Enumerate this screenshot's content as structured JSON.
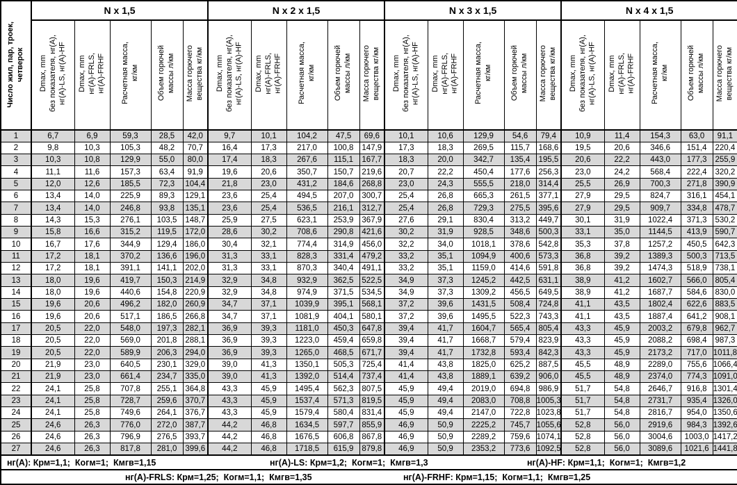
{
  "table": {
    "row_header": "Число жил, пар, троек,\nчетверок",
    "groups": [
      "N x 1,5",
      "N x 2 x 1,5",
      "N x 3 x 1,5",
      "N x 4 x 1,5"
    ],
    "subcolumns": [
      "Dmax, mm\nбез показателя, нг(A),\nнг(A)-LS, нг(A)-HF",
      "Dmax, mm\nнг(A)-FRLS,\nнг(A)-FRHF",
      "Расчетная масса,\nкг/км",
      "Объем горючей\nмассы л/км",
      "Масса горючего\nвещества кг/км"
    ],
    "rows": [
      [
        "1",
        "6,7",
        "6,9",
        "59,3",
        "28,5",
        "42,0",
        "9,7",
        "10,1",
        "104,2",
        "47,5",
        "69,6",
        "10,1",
        "10,6",
        "129,9",
        "54,6",
        "79,4",
        "10,9",
        "11,4",
        "154,3",
        "63,0",
        "91,1"
      ],
      [
        "2",
        "9,8",
        "10,3",
        "105,3",
        "48,2",
        "70,7",
        "16,4",
        "17,3",
        "217,0",
        "100,8",
        "147,9",
        "17,3",
        "18,3",
        "269,5",
        "115,7",
        "168,6",
        "19,5",
        "20,6",
        "346,6",
        "151,4",
        "220,4"
      ],
      [
        "3",
        "10,3",
        "10,8",
        "129,9",
        "55,0",
        "80,0",
        "17,4",
        "18,3",
        "267,6",
        "115,1",
        "167,7",
        "18,3",
        "20,0",
        "342,7",
        "135,4",
        "195,5",
        "20,6",
        "22,2",
        "443,0",
        "177,3",
        "255,9"
      ],
      [
        "4",
        "11,1",
        "11,6",
        "157,3",
        "63,4",
        "91,9",
        "19,6",
        "20,6",
        "350,7",
        "150,7",
        "219,6",
        "20,7",
        "22,2",
        "450,4",
        "177,6",
        "256,3",
        "23,0",
        "24,2",
        "568,4",
        "222,4",
        "320,2"
      ],
      [
        "5",
        "12,0",
        "12,6",
        "185,5",
        "72,3",
        "104,4",
        "21,8",
        "23,0",
        "431,2",
        "184,6",
        "268,8",
        "23,0",
        "24,3",
        "555,5",
        "218,0",
        "314,4",
        "25,5",
        "26,9",
        "700,3",
        "271,8",
        "390,9"
      ],
      [
        "6",
        "13,4",
        "14,0",
        "225,9",
        "89,3",
        "129,1",
        "23,6",
        "25,4",
        "494,5",
        "207,0",
        "300,7",
        "25,4",
        "26,8",
        "665,3",
        "261,5",
        "377,1",
        "27,9",
        "29,5",
        "824,7",
        "316,1",
        "454,1"
      ],
      [
        "7",
        "13,4",
        "14,0",
        "246,8",
        "93,8",
        "135,1",
        "23,6",
        "25,4",
        "536,5",
        "216,1",
        "312,7",
        "25,4",
        "26,8",
        "729,3",
        "275,5",
        "395,6",
        "27,9",
        "29,5",
        "909,7",
        "334,8",
        "478,7"
      ],
      [
        "8",
        "14,3",
        "15,3",
        "276,1",
        "103,5",
        "148,7",
        "25,9",
        "27,5",
        "623,1",
        "253,9",
        "367,9",
        "27,6",
        "29,1",
        "830,4",
        "313,2",
        "449,7",
        "30,1",
        "31,9",
        "1022,4",
        "371,3",
        "530,2"
      ],
      [
        "9",
        "15,8",
        "16,6",
        "315,2",
        "119,5",
        "172,0",
        "28,6",
        "30,2",
        "708,6",
        "290,8",
        "421,6",
        "30,2",
        "31,9",
        "928,5",
        "348,6",
        "500,3",
        "33,1",
        "35,0",
        "1144,5",
        "413,9",
        "590,7"
      ],
      [
        "10",
        "16,7",
        "17,6",
        "344,9",
        "129,4",
        "186,0",
        "30,4",
        "32,1",
        "774,4",
        "314,9",
        "456,0",
        "32,2",
        "34,0",
        "1018,1",
        "378,6",
        "542,8",
        "35,3",
        "37,8",
        "1257,2",
        "450,5",
        "642,3"
      ],
      [
        "11",
        "17,2",
        "18,1",
        "370,2",
        "136,6",
        "196,0",
        "31,3",
        "33,1",
        "828,3",
        "331,4",
        "479,2",
        "33,2",
        "35,1",
        "1094,9",
        "400,6",
        "573,3",
        "36,8",
        "39,2",
        "1389,3",
        "500,3",
        "713,5"
      ],
      [
        "12",
        "17,2",
        "18,1",
        "391,1",
        "141,1",
        "202,0",
        "31,3",
        "33,1",
        "870,3",
        "340,4",
        "491,1",
        "33,2",
        "35,1",
        "1159,0",
        "414,6",
        "591,8",
        "36,8",
        "39,2",
        "1474,3",
        "518,9",
        "738,1"
      ],
      [
        "13",
        "18,0",
        "19,6",
        "419,7",
        "150,3",
        "214,9",
        "32,9",
        "34,8",
        "932,9",
        "362,5",
        "522,5",
        "34,9",
        "37,3",
        "1245,2",
        "442,5",
        "631,1",
        "38,9",
        "41,2",
        "1602,7",
        "566,0",
        "805,4"
      ],
      [
        "14",
        "18,0",
        "19,6",
        "440,6",
        "154,8",
        "220,9",
        "32,9",
        "34,8",
        "974,9",
        "371,5",
        "534,5",
        "34,9",
        "37,3",
        "1309,2",
        "456,5",
        "649,5",
        "38,9",
        "41,2",
        "1687,7",
        "584,6",
        "830,0"
      ],
      [
        "15",
        "19,6",
        "20,6",
        "496,2",
        "182,0",
        "260,9",
        "34,7",
        "37,1",
        "1039,9",
        "395,1",
        "568,1",
        "37,2",
        "39,6",
        "1431,5",
        "508,4",
        "724,8",
        "41,1",
        "43,5",
        "1802,4",
        "622,6",
        "883,5"
      ],
      [
        "16",
        "19,6",
        "20,6",
        "517,1",
        "186,5",
        "266,8",
        "34,7",
        "37,1",
        "1081,9",
        "404,1",
        "580,1",
        "37,2",
        "39,6",
        "1495,5",
        "522,3",
        "743,3",
        "41,1",
        "43,5",
        "1887,4",
        "641,2",
        "908,1"
      ],
      [
        "17",
        "20,5",
        "22,0",
        "548,0",
        "197,3",
        "282,1",
        "36,9",
        "39,3",
        "1181,0",
        "450,3",
        "647,8",
        "39,4",
        "41,7",
        "1604,7",
        "565,4",
        "805,4",
        "43,3",
        "45,9",
        "2003,2",
        "679,8",
        "962,7"
      ],
      [
        "18",
        "20,5",
        "22,0",
        "569,0",
        "201,8",
        "288,1",
        "36,9",
        "39,3",
        "1223,0",
        "459,4",
        "659,8",
        "39,4",
        "41,7",
        "1668,7",
        "579,4",
        "823,9",
        "43,3",
        "45,9",
        "2088,2",
        "698,4",
        "987,3"
      ],
      [
        "19",
        "20,5",
        "22,0",
        "589,9",
        "206,3",
        "294,0",
        "36,9",
        "39,3",
        "1265,0",
        "468,5",
        "671,7",
        "39,4",
        "41,7",
        "1732,8",
        "593,4",
        "842,3",
        "43,3",
        "45,9",
        "2173,2",
        "717,0",
        "1011,8"
      ],
      [
        "20",
        "21,9",
        "23,0",
        "640,5",
        "230,1",
        "329,0",
        "39,0",
        "41,3",
        "1350,1",
        "505,3",
        "725,4",
        "41,4",
        "43,8",
        "1825,0",
        "625,2",
        "887,5",
        "45,5",
        "48,9",
        "2289,0",
        "755,6",
        "1066,4"
      ],
      [
        "21",
        "21,9",
        "23,0",
        "661,4",
        "234,7",
        "335,0",
        "39,0",
        "41,3",
        "1392,0",
        "514,4",
        "737,4",
        "41,4",
        "43,8",
        "1889,1",
        "639,2",
        "906,0",
        "45,5",
        "48,9",
        "2374,0",
        "774,3",
        "1091,0"
      ],
      [
        "22",
        "24,1",
        "25,8",
        "707,8",
        "255,1",
        "364,8",
        "43,3",
        "45,9",
        "1495,4",
        "562,3",
        "807,5",
        "45,9",
        "49,4",
        "2019,0",
        "694,8",
        "986,9",
        "51,7",
        "54,8",
        "2646,7",
        "916,8",
        "1301,4"
      ],
      [
        "23",
        "24,1",
        "25,8",
        "728,7",
        "259,6",
        "370,7",
        "43,3",
        "45,9",
        "1537,4",
        "571,3",
        "819,5",
        "45,9",
        "49,4",
        "2083,0",
        "708,8",
        "1005,3",
        "51,7",
        "54,8",
        "2731,7",
        "935,4",
        "1326,0"
      ],
      [
        "24",
        "24,1",
        "25,8",
        "749,6",
        "264,1",
        "376,7",
        "43,3",
        "45,9",
        "1579,4",
        "580,4",
        "831,4",
        "45,9",
        "49,4",
        "2147,0",
        "722,8",
        "1023,8",
        "51,7",
        "54,8",
        "2816,7",
        "954,0",
        "1350,6"
      ],
      [
        "25",
        "24,6",
        "26,3",
        "776,0",
        "272,0",
        "387,7",
        "44,2",
        "46,8",
        "1634,5",
        "597,7",
        "855,9",
        "46,9",
        "50,9",
        "2225,2",
        "745,7",
        "1055,6",
        "52,8",
        "56,0",
        "2919,6",
        "984,3",
        "1392,6"
      ],
      [
        "26",
        "24,6",
        "26,3",
        "796,9",
        "276,5",
        "393,7",
        "44,2",
        "46,8",
        "1676,5",
        "606,8",
        "867,8",
        "46,9",
        "50,9",
        "2289,2",
        "759,6",
        "1074,1",
        "52,8",
        "56,0",
        "3004,6",
        "1003,0",
        "1417,2"
      ],
      [
        "27",
        "24,6",
        "26,3",
        "817,8",
        "281,0",
        "399,6",
        "44,2",
        "46,8",
        "1718,5",
        "615,9",
        "879,8",
        "46,9",
        "50,9",
        "2353,2",
        "773,6",
        "1092,5",
        "52,8",
        "56,0",
        "3089,6",
        "1021,6",
        "1441,8"
      ]
    ],
    "footer": {
      "line1": [
        "нг(A): Крм=1,1;  Когм=1;  Кмгв=1,15",
        "нг(A)-LS: Крм=1,2;  Когм=1;  Кмгв=1,3",
        "нг(A)-HF: Крм=1,1;  Когм=1;  Кмгв=1,2"
      ],
      "line2": [
        "нг(A)-FRLS: Крм=1,25;  Когм=1,1;  Кмгв=1,35",
        "нг(A)-FRHF: Крм=1,15;  Когм=1,1;  Кмгв=1,25"
      ]
    },
    "colors": {
      "row_shade": "#d8d8d8",
      "border": "#000000"
    }
  }
}
